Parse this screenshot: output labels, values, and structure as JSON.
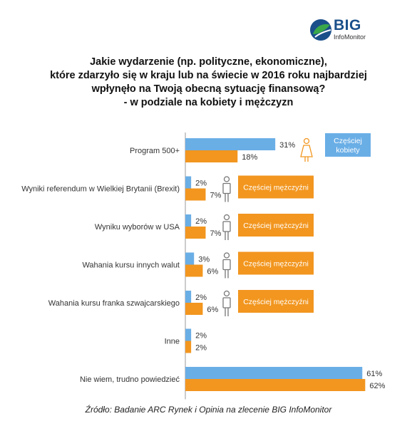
{
  "logo": {
    "big": "BIG",
    "sub": "InfoMonitor"
  },
  "title_lines": [
    "Jakie wydarzenie (np. polityczne, ekonomiczne),",
    "które zdarzyło się w kraju lub na świecie w 2016 roku najbardziej",
    "wpłynęło na Twoją obecną sytuację finansową?",
    "- w podziale na kobiety i mężczyzn"
  ],
  "source": "Źródło: Badanie ARC Rynek i Opinia na zlecenie BIG InfoMonitor",
  "colors": {
    "women": "#6aaee6",
    "men": "#f2961f",
    "axis": "#999999",
    "logo_blue": "#1a4f8a",
    "logo_green": "#3aa84a"
  },
  "chart_data": {
    "type": "bar",
    "orientation": "horizontal",
    "categories": [
      "Program 500+",
      "Wyniki referendum w Wielkiej Brytanii (Brexit)",
      "Wyniku wyborów w USA",
      "Wahania kursu innych walut",
      "Wahania kursu franka szwajcarskiego",
      "Inne",
      "Nie wiem, trudno powiedzieć"
    ],
    "series": [
      {
        "values": [
          31,
          2,
          2,
          3,
          2,
          2,
          61
        ],
        "color": "#6aaee6"
      },
      {
        "values": [
          18,
          7,
          7,
          6,
          6,
          2,
          62
        ],
        "color": "#f2961f"
      }
    ],
    "value_suffix": "%",
    "xlim": [
      0,
      62
    ],
    "annotations": [
      {
        "category_index": 0,
        "icon": "woman-icon",
        "text_lines": [
          "Częściej",
          "kobiety"
        ],
        "color": "#6aaee6"
      },
      {
        "category_index": 1,
        "icon": "man-icon",
        "text_lines": [
          "Częściej mężczyźni"
        ],
        "color": "#f2961f"
      },
      {
        "category_index": 2,
        "icon": "man-icon",
        "text_lines": [
          "Częściej mężczyźni"
        ],
        "color": "#f2961f"
      },
      {
        "category_index": 3,
        "icon": "man-icon",
        "text_lines": [
          "Częściej mężczyźni"
        ],
        "color": "#f2961f"
      },
      {
        "category_index": 4,
        "icon": "man-icon",
        "text_lines": [
          "Częściej mężczyźni"
        ],
        "color": "#f2961f"
      }
    ]
  }
}
